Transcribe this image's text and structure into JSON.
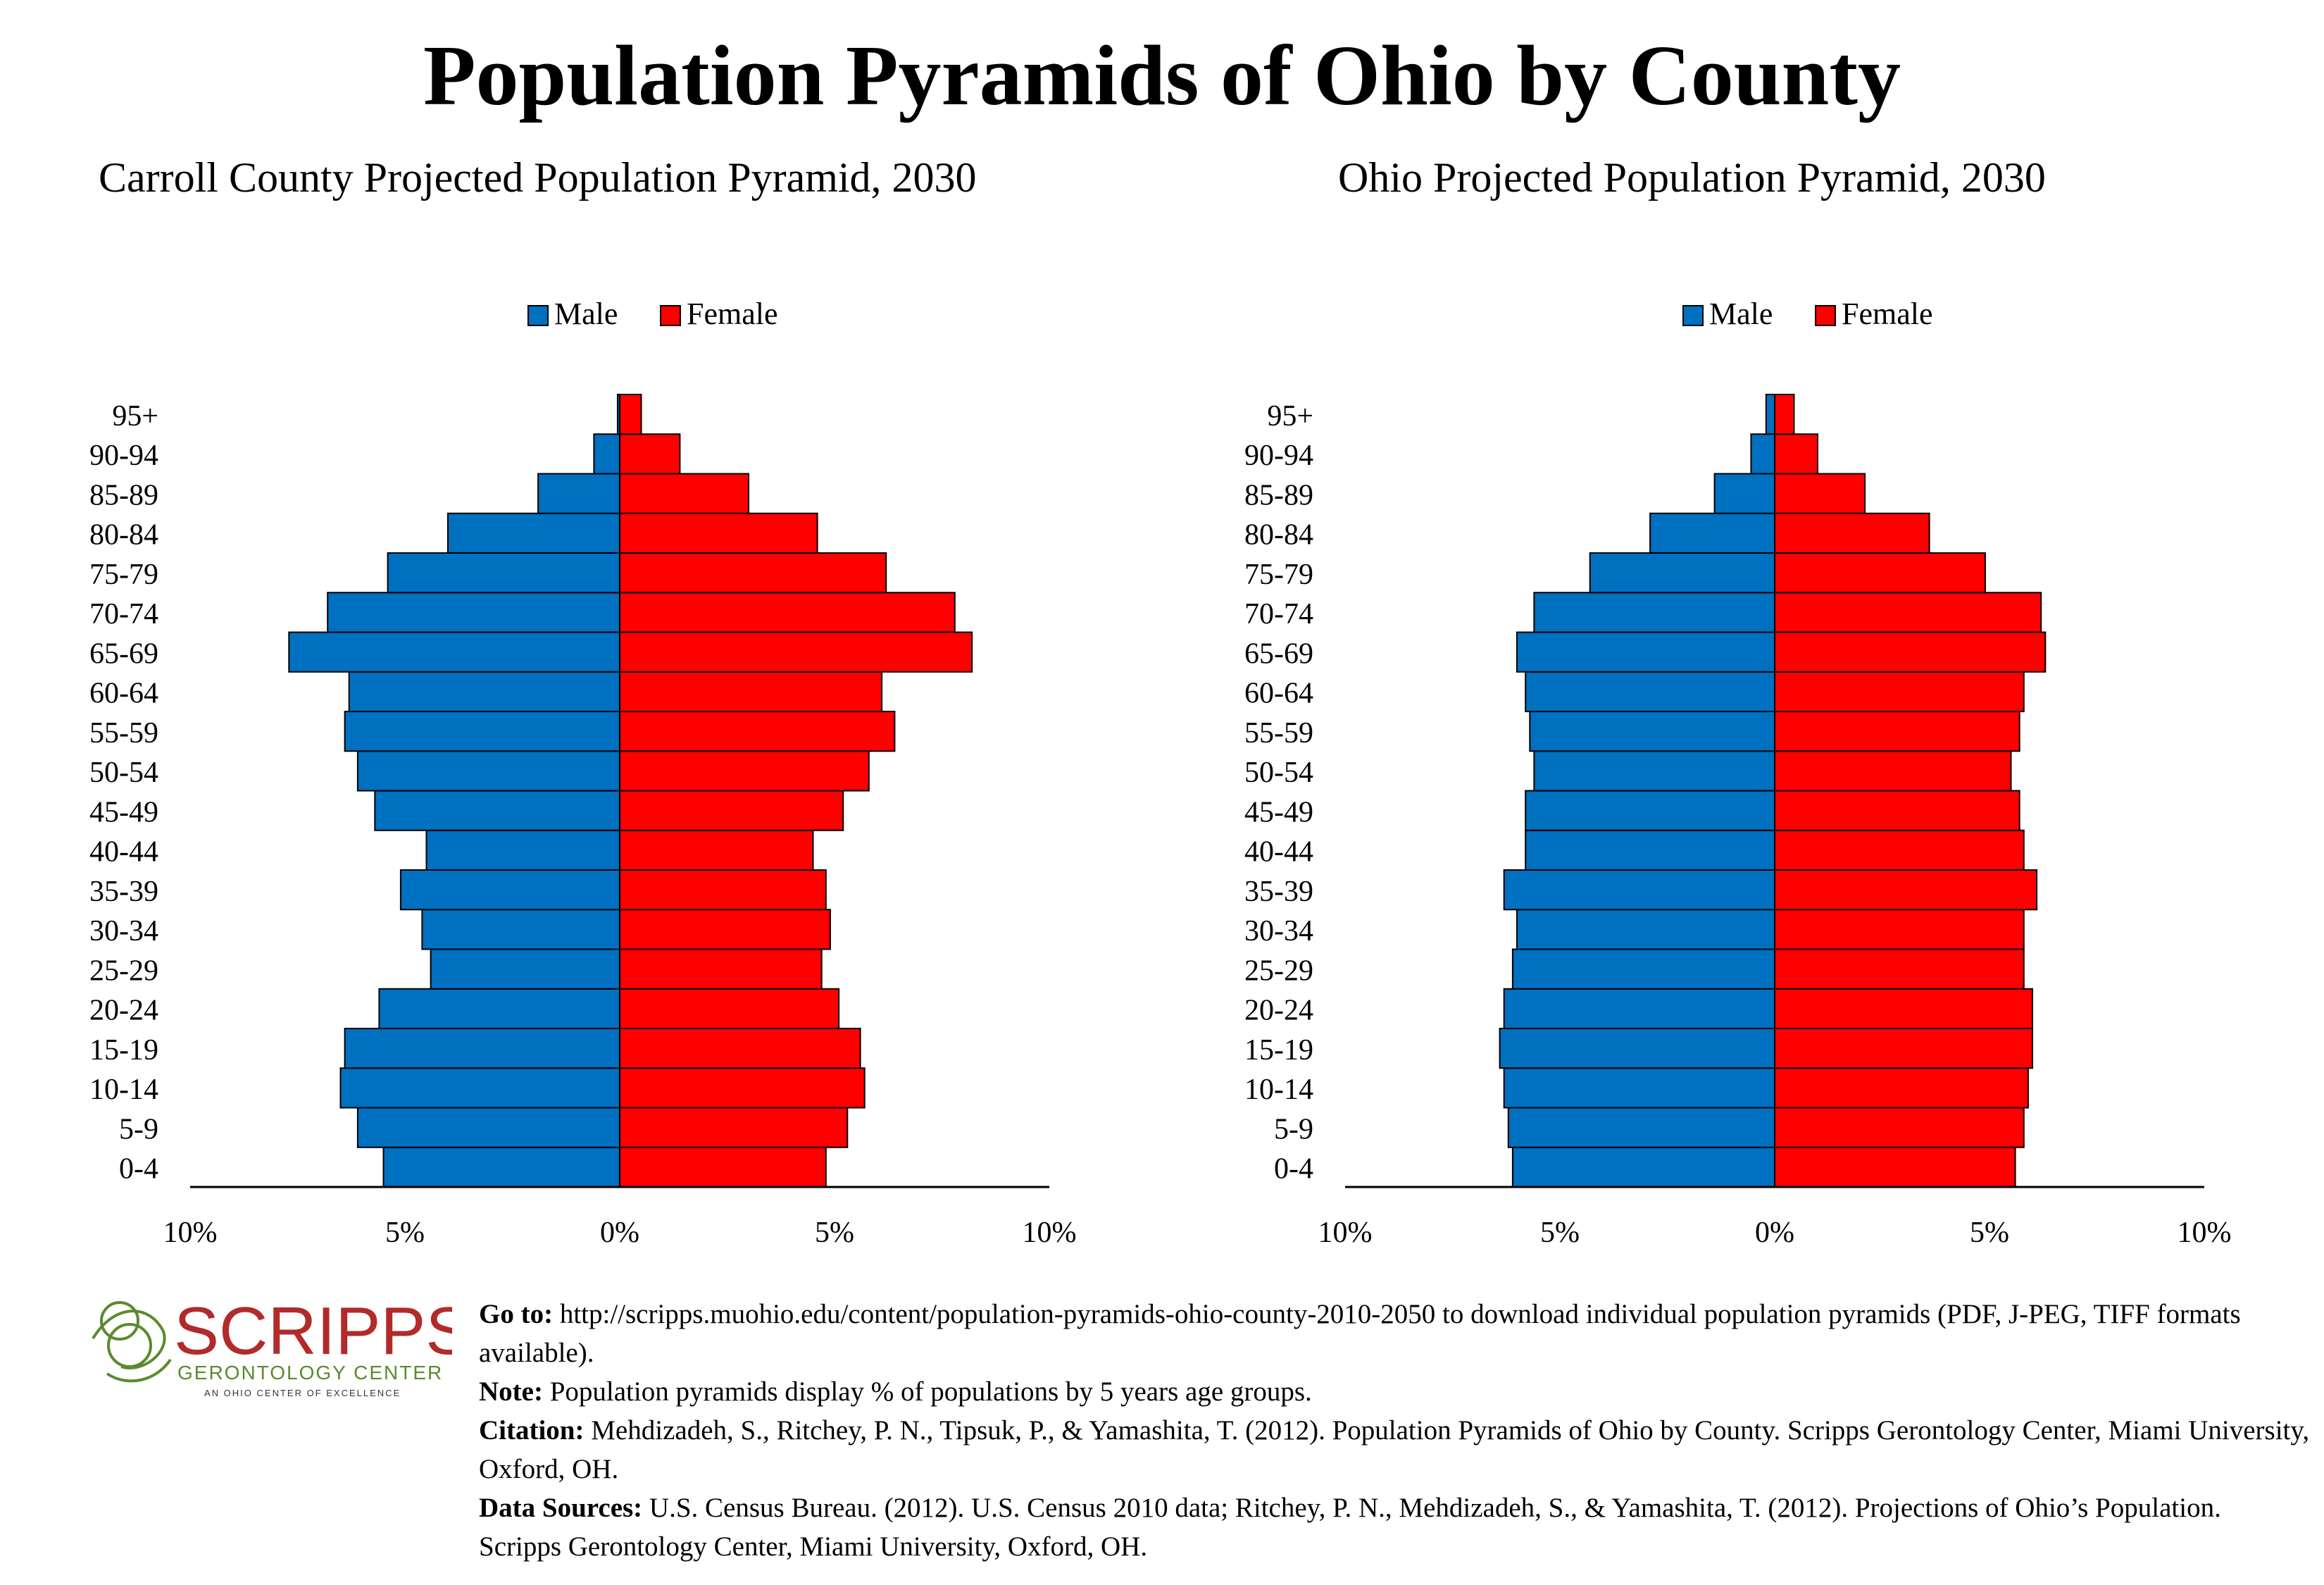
{
  "title": "Population Pyramids of Ohio by County",
  "footer": {
    "goto_label": "Go to:",
    "goto_text": "http://scripps.muohio.edu/content/population-pyramids-ohio-county-2010-2050 to download individual population pyramids (PDF, J-PEG, TIFF formats available).",
    "note_label": "Note:",
    "note_text": "Population pyramids display % of populations by 5 years age groups.",
    "citation_label": "Citation:",
    "citation_text": "Mehdizadeh, S., Ritchey, P. N., Tipsuk, P., & Yamashita, T. (2012). Population Pyramids of Ohio by County. Scripps Gerontology Center, Miami University, Oxford, OH.",
    "sources_label": "Data Sources:",
    "sources_text": "U.S. Census Bureau. (2012). U.S. Census 2010 data; Ritchey, P. N., Mehdizadeh, S., & Yamashita, T. (2012). Projections of Ohio’s Population. Scripps Gerontology Center, Miami University, Oxford, OH."
  },
  "logo": {
    "name": "SCRIPPS",
    "line1": "GERONTOLOGY CENTER",
    "line2": "AN OHIO CENTER OF EXCELLENCE"
  },
  "colors": {
    "male": "#0070c0",
    "female": "#ff0000",
    "logo_red": "#b22a2a",
    "logo_green": "#5a8a2e"
  },
  "chart_data": [
    {
      "type": "bar",
      "orientation": "horizontal-pyramid",
      "title": "Carroll County Projected Population Pyramid, 2030",
      "categories": [
        "0-4",
        "5-9",
        "10-14",
        "15-19",
        "20-24",
        "25-29",
        "30-34",
        "35-39",
        "40-44",
        "45-49",
        "50-54",
        "55-59",
        "60-64",
        "65-69",
        "70-74",
        "75-79",
        "80-84",
        "85-89",
        "90-94",
        "95+"
      ],
      "series": [
        {
          "name": "Male",
          "values": [
            5.5,
            6.1,
            6.5,
            6.4,
            5.6,
            4.4,
            4.6,
            5.1,
            4.5,
            5.7,
            6.1,
            6.4,
            6.3,
            7.7,
            6.8,
            5.4,
            4.0,
            1.9,
            0.6,
            0.05
          ]
        },
        {
          "name": "Female",
          "values": [
            4.8,
            5.3,
            5.7,
            5.6,
            5.1,
            4.7,
            4.9,
            4.8,
            4.5,
            5.2,
            5.8,
            6.4,
            6.1,
            8.2,
            7.8,
            6.2,
            4.6,
            3.0,
            1.4,
            0.5
          ]
        }
      ],
      "xlim": [
        -10,
        10
      ],
      "xticks": [
        "10%",
        "5%",
        "0%",
        "5%",
        "10%"
      ],
      "legend": "top-center"
    },
    {
      "type": "bar",
      "orientation": "horizontal-pyramid",
      "title": "Ohio Projected Population Pyramid, 2030",
      "categories": [
        "0-4",
        "5-9",
        "10-14",
        "15-19",
        "20-24",
        "25-29",
        "30-34",
        "35-39",
        "40-44",
        "45-49",
        "50-54",
        "55-59",
        "60-64",
        "65-69",
        "70-74",
        "75-79",
        "80-84",
        "85-89",
        "90-94",
        "95+"
      ],
      "series": [
        {
          "name": "Male",
          "values": [
            6.1,
            6.2,
            6.3,
            6.4,
            6.3,
            6.1,
            6.0,
            6.3,
            5.8,
            5.8,
            5.6,
            5.7,
            5.8,
            6.0,
            5.6,
            4.3,
            2.9,
            1.4,
            0.55,
            0.2
          ]
        },
        {
          "name": "Female",
          "values": [
            5.6,
            5.8,
            5.9,
            6.0,
            6.0,
            5.8,
            5.8,
            6.1,
            5.8,
            5.7,
            5.5,
            5.7,
            5.8,
            6.3,
            6.2,
            4.9,
            3.6,
            2.1,
            1.0,
            0.45
          ]
        }
      ],
      "xlim": [
        -10,
        10
      ],
      "xticks": [
        "10%",
        "5%",
        "0%",
        "5%",
        "10%"
      ],
      "legend": "top-center"
    }
  ]
}
